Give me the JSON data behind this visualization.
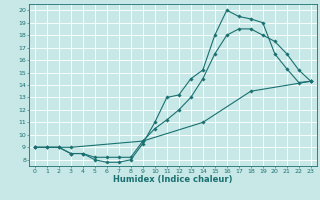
{
  "title": "",
  "xlabel": "Humidex (Indice chaleur)",
  "bg_color": "#c8e8e8",
  "grid_color": "#ffffff",
  "line_color": "#1a7070",
  "xlim": [
    -0.5,
    23.5
  ],
  "ylim": [
    7.5,
    20.5
  ],
  "xticks": [
    0,
    1,
    2,
    3,
    4,
    5,
    6,
    7,
    8,
    9,
    10,
    11,
    12,
    13,
    14,
    15,
    16,
    17,
    18,
    19,
    20,
    21,
    22,
    23
  ],
  "yticks": [
    8,
    9,
    10,
    11,
    12,
    13,
    14,
    15,
    16,
    17,
    18,
    19,
    20
  ],
  "curve1_x": [
    0,
    1,
    2,
    3,
    4,
    5,
    6,
    7,
    8,
    9,
    10,
    11,
    12,
    13,
    14,
    15,
    16,
    17,
    18,
    19,
    20,
    21,
    22,
    23
  ],
  "curve1_y": [
    9,
    9,
    9,
    8.5,
    8.5,
    8.0,
    7.8,
    7.8,
    8.0,
    9.3,
    11.0,
    13.0,
    13.2,
    14.5,
    15.2,
    18.0,
    20.0,
    19.5,
    19.3,
    19.0,
    16.5,
    15.3,
    14.2,
    14.3
  ],
  "curve2_x": [
    0,
    1,
    2,
    3,
    4,
    5,
    6,
    7,
    8,
    9,
    10,
    11,
    12,
    13,
    14,
    15,
    16,
    17,
    18,
    19,
    20,
    21,
    22,
    23
  ],
  "curve2_y": [
    9,
    9,
    9,
    8.5,
    8.5,
    8.2,
    8.2,
    8.2,
    8.2,
    9.5,
    10.5,
    11.2,
    12.0,
    13.0,
    14.5,
    16.5,
    18.0,
    18.5,
    18.5,
    18.0,
    17.5,
    16.5,
    15.2,
    14.3
  ],
  "curve3_x": [
    0,
    3,
    9,
    14,
    18,
    23
  ],
  "curve3_y": [
    9,
    9,
    9.5,
    11.0,
    13.5,
    14.3
  ],
  "marker_size": 1.8,
  "line_width": 0.8,
  "xlabel_fontsize": 6.0,
  "tick_fontsize": 4.5
}
